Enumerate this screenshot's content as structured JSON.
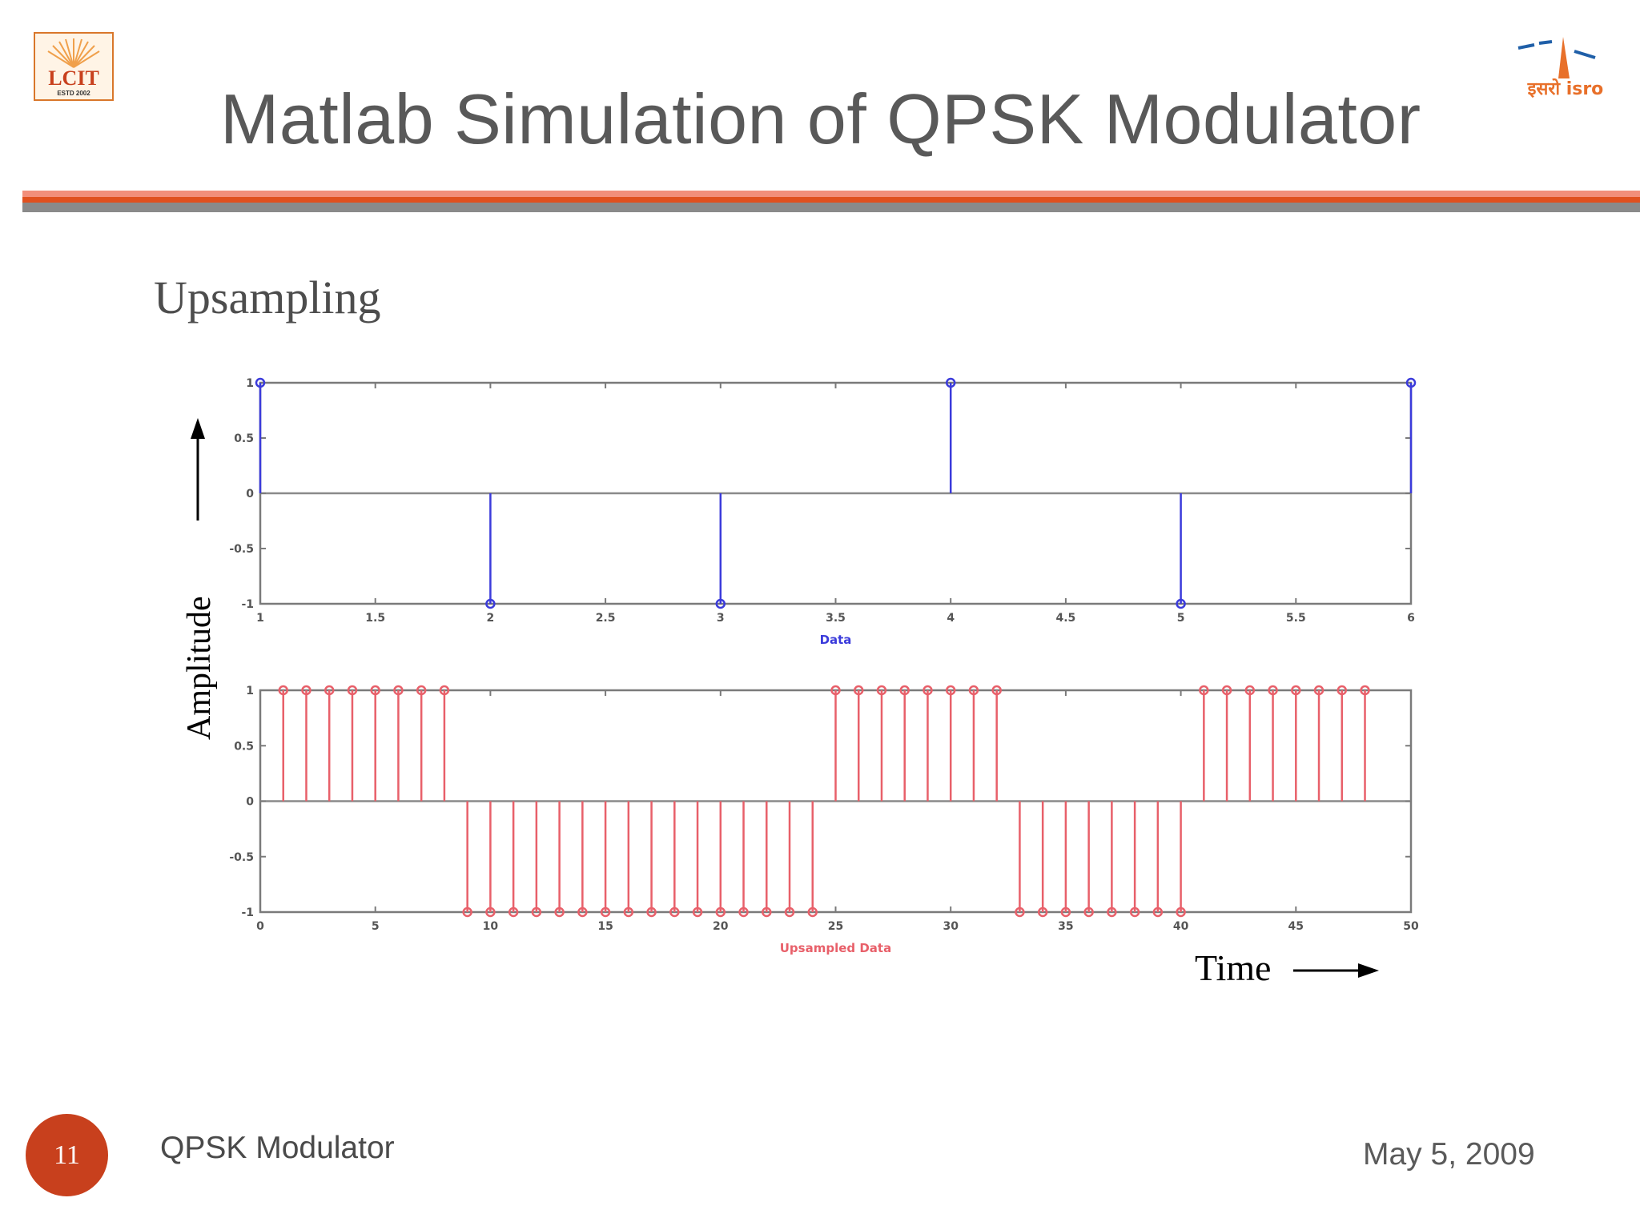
{
  "slide": {
    "title": "Matlab Simulation of QPSK Modulator",
    "subtitle": "Upsampling",
    "footer_title": "QPSK Modulator",
    "date": "May 5, 2009",
    "page_number": "11",
    "logo_left_text": "LCIT",
    "logo_left_subtext": "ESTD   2002",
    "logo_right_text": "इसरो isro"
  },
  "colors": {
    "accent": "#c8401d",
    "rule_top": "#f28e7a",
    "rule_bottom": "#8a8a8a",
    "series_data": "#3b3bdb",
    "series_upsampled": "#e8606a",
    "axis": "#7a7a7a"
  },
  "icons": {
    "amplitude_arrow": "arrow-up-icon",
    "time_arrow": "arrow-right-icon"
  },
  "chart_data": [
    {
      "type": "stem",
      "xlabel": "Data",
      "x": [
        1,
        2,
        3,
        4,
        5,
        6
      ],
      "values": [
        1,
        -1,
        -1,
        1,
        -1,
        1
      ],
      "xlim": [
        1,
        6
      ],
      "ylim": [
        -1,
        1
      ],
      "xticks": [
        1,
        1.5,
        2,
        2.5,
        3,
        3.5,
        4,
        4.5,
        5,
        5.5,
        6
      ],
      "xtick_labels": [
        "1",
        "1.5",
        "2",
        "2.5",
        "3",
        "3.5",
        "4",
        "4.5",
        "5",
        "5.5",
        "6"
      ],
      "yticks": [
        -1,
        -0.5,
        0,
        0.5,
        1
      ],
      "ytick_labels": [
        "-1",
        "-0.5",
        "0",
        "0.5",
        "1"
      ]
    },
    {
      "type": "stem",
      "xlabel": "Upsampled Data",
      "x": [
        1,
        2,
        3,
        4,
        5,
        6,
        7,
        8,
        9,
        10,
        11,
        12,
        13,
        14,
        15,
        16,
        17,
        18,
        19,
        20,
        21,
        22,
        23,
        24,
        25,
        26,
        27,
        28,
        29,
        30,
        31,
        32,
        33,
        34,
        35,
        36,
        37,
        38,
        39,
        40,
        41,
        42,
        43,
        44,
        45,
        46,
        47,
        48
      ],
      "values": [
        1,
        1,
        1,
        1,
        1,
        1,
        1,
        1,
        -1,
        -1,
        -1,
        -1,
        -1,
        -1,
        -1,
        -1,
        -1,
        -1,
        -1,
        -1,
        -1,
        -1,
        -1,
        -1,
        1,
        1,
        1,
        1,
        1,
        1,
        1,
        1,
        -1,
        -1,
        -1,
        -1,
        -1,
        -1,
        -1,
        -1,
        1,
        1,
        1,
        1,
        1,
        1,
        1,
        1
      ],
      "xlim": [
        0,
        50
      ],
      "ylim": [
        -1,
        1
      ],
      "xticks": [
        0,
        5,
        10,
        15,
        20,
        25,
        30,
        35,
        40,
        45,
        50
      ],
      "xtick_labels": [
        "0",
        "5",
        "10",
        "15",
        "20",
        "25",
        "30",
        "35",
        "40",
        "45",
        "50"
      ],
      "yticks": [
        -1,
        -0.5,
        0,
        0.5,
        1
      ],
      "ytick_labels": [
        "-1",
        "-0.5",
        "0",
        "0.5",
        "1"
      ]
    }
  ],
  "annotations": {
    "amplitude_label": "Amplitude",
    "time_label": "Time"
  }
}
